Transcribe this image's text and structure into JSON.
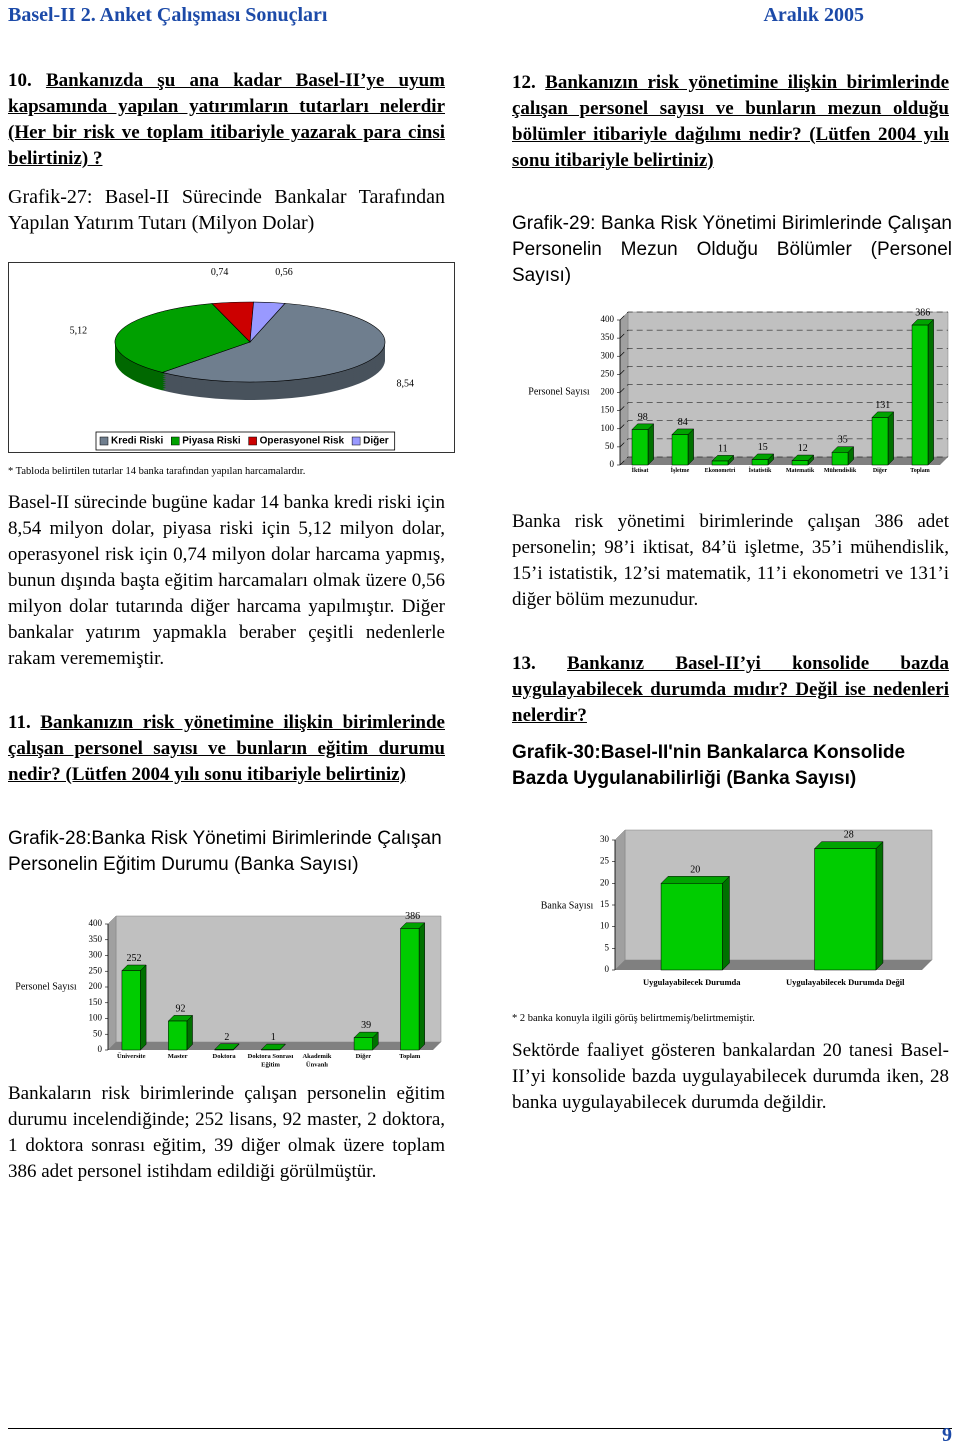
{
  "header": {
    "title": "Basel-II 2. Anket Çalışması Sonuçları",
    "date": "Aralık 2005"
  },
  "left": {
    "q10": {
      "number": "10.",
      "text": "Bankanızda şu ana kadar Basel-II’ye uyum kapsamında yapılan yatırımların tutarları nelerdir (Her bir risk ve toplam itibariyle yazarak para cinsi belirtiniz) ?"
    },
    "fig27_title": "Grafik-27: Basel-II Sürecinde Bankalar Tarafından Yapılan Yatırım Tutarı (Milyon Dolar)",
    "fig27_note": "* Tabloda belirtilen tutarlar 14 banka tarafından yapılan harcamalardır.",
    "para1": "Basel-II sürecinde bugüne kadar 14 banka kredi riski için 8,54 milyon dolar, piyasa riski için 5,12 milyon dolar, operasyonel risk için 0,74 milyon dolar harcama yapmış, bunun dışında başta eğitim harcamaları olmak üzere 0,56 milyon dolar tutarında diğer harcama yapılmıştır. Diğer bankalar yatırım yapmakla beraber çeşitli nedenlerle rakam verememiştir.",
    "q11": {
      "number": "11.",
      "text": "Bankanızın risk yönetimine ilişkin birimlerinde çalışan personel sayısı ve bunların eğitim durumu nedir? (Lütfen 2004 yılı sonu itibariyle belirtiniz)"
    },
    "fig28_title": "Grafik-28:Banka Risk Yönetimi Birimlerinde Çalışan Personelin Eğitim Durumu (Banka Sayısı)",
    "para2": "Bankaların risk birimlerinde çalışan personelin eğitim durumu incelendiğinde; 252 lisans, 92 master, 2 doktora, 1 doktora sonrası eğitim, 39 diğer olmak üzere toplam 386 adet personel istihdam edildiği görülmüştür."
  },
  "right": {
    "q12": {
      "number": "12.",
      "text": "Bankanızın risk yönetimine ilişkin birimlerinde çalışan personel sayısı ve bunların mezun olduğu bölümler itibariyle dağılımı nedir? (Lütfen 2004 yılı sonu itibariyle belirtiniz)"
    },
    "fig29_title": "Grafik-29: Banka Risk Yönetimi Birimlerinde Çalışan Personelin Mezun Olduğu Bölümler (Personel Sayısı)",
    "para3": "Banka risk yönetimi birimlerinde çalışan 386 adet personelin; 98’i iktisat, 84’ü işletme, 35’i mühendislik, 15’i istatistik, 12’si matematik, 11’i ekonometri ve 131’i diğer bölüm mezunudur.",
    "q13": {
      "number": "13.",
      "text": "Bankanız Basel-II’yi konsolide bazda uygulayabilecek durumda mıdır? Değil ise nedenleri nelerdir?"
    },
    "fig30_title": "Grafik-30:Basel-II'nin Bankalarca Konsolide Bazda Uygulanabilirliği (Banka Sayısı)",
    "fig30_note": "* 2 banka konuyla ilgili görüş belirtmemiş/belirtmemiştir.",
    "para4": "Sektörde faaliyet gösteren bankalardan 20 tanesi Basel-II’yi konsolide bazda uygulayabilecek durumda iken, 28 banka uygulayabilecek durumda değildir."
  },
  "page_number": "9",
  "chart_data": [
    {
      "type": "pie",
      "categories": [
        "Kredi Riski",
        "Piyasa Riski",
        "Operasyonel Risk",
        "Diğer"
      ],
      "values": [
        8.54,
        5.12,
        0.74,
        0.56
      ],
      "value_labels": [
        "8,54",
        "5,12",
        "0,74",
        "0,56"
      ],
      "colors": [
        "#6f7e8e",
        "#00a000",
        "#cc0000",
        "#9999ff"
      ],
      "legend": "bottom"
    },
    {
      "type": "bar",
      "ylabel": "Personel Sayısı",
      "categories": [
        "Üniversite",
        "Master",
        "Doktora",
        "Doktora Sonrası Eğitim",
        "Akademik Ünvanlı",
        "Diğer",
        "Toplam"
      ],
      "values": [
        252,
        92,
        2,
        1,
        null,
        39,
        386
      ],
      "color": "#00cc00",
      "ylim": [
        0,
        400
      ],
      "yticks": [
        0,
        50,
        100,
        150,
        200,
        250,
        300,
        350,
        400
      ],
      "grid": false
    },
    {
      "type": "bar",
      "ylabel": "Personel Sayısı",
      "categories": [
        "İktisat",
        "İşletme",
        "Ekonometri",
        "İstatistik",
        "Matematik",
        "Mühendislik",
        "Diğer",
        "Toplam"
      ],
      "values": [
        98,
        84,
        11,
        15,
        12,
        35,
        131,
        386
      ],
      "color": "#00cc00",
      "ylim": [
        0,
        400
      ],
      "yticks": [
        0,
        50,
        100,
        150,
        200,
        250,
        300,
        350,
        400
      ],
      "grid": true
    },
    {
      "type": "bar",
      "ylabel": "Banka Sayısı",
      "categories": [
        "Uygulayabilecek Durumda",
        "Uygulayabilecek Durumda Değil"
      ],
      "values": [
        20,
        28
      ],
      "color": "#00cc00",
      "ylim": [
        0,
        30
      ],
      "yticks": [
        0,
        5,
        10,
        15,
        20,
        25,
        30
      ],
      "grid": false
    }
  ]
}
